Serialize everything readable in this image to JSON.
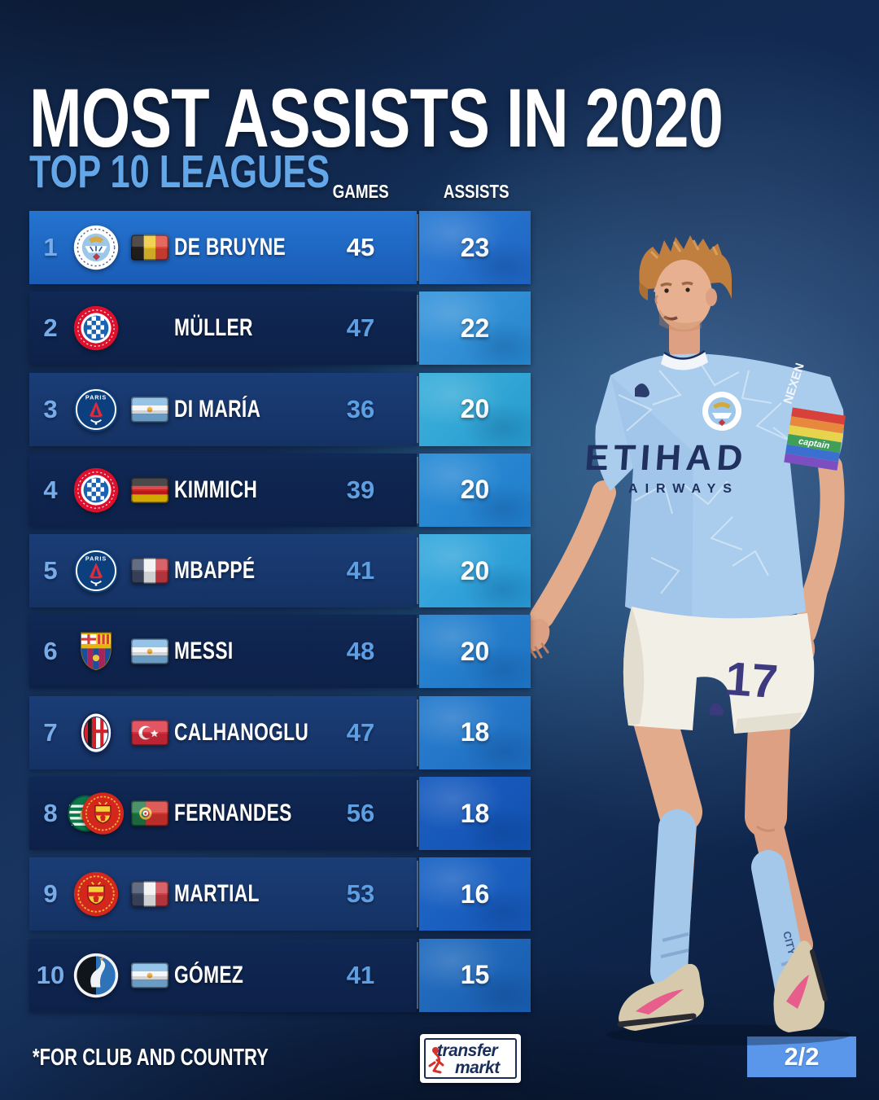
{
  "header": {
    "title": "MOST ASSISTS IN 2020",
    "subtitle": "TOP 10 LEAGUES"
  },
  "columns": {
    "games": "GAMES",
    "assists": "ASSISTS"
  },
  "rows": [
    {
      "rank": "1",
      "player": "DE BRUYNE",
      "clubs": [
        "man-city"
      ],
      "flag": "belgium",
      "games": "45",
      "assists": "23",
      "tone": "bright",
      "highlight": true,
      "assist_bg": [
        "#2e7fd6",
        "#1d63c2"
      ]
    },
    {
      "rank": "2",
      "player": "MÜLLER",
      "clubs": [
        "bayern"
      ],
      "flag": null,
      "games": "47",
      "assists": "22",
      "tone": "dark",
      "highlight": false,
      "assist_bg": [
        "#3f9ade",
        "#2484cc"
      ]
    },
    {
      "rank": "3",
      "player": "DI MARÍA",
      "clubs": [
        "psg"
      ],
      "flag": "argentina",
      "games": "36",
      "assists": "20",
      "tone": "mid",
      "highlight": false,
      "assist_bg": [
        "#3fb2dc",
        "#259ace"
      ]
    },
    {
      "rank": "4",
      "player": "KIMMICH",
      "clubs": [
        "bayern"
      ],
      "flag": "germany",
      "games": "39",
      "assists": "20",
      "tone": "dark",
      "highlight": false,
      "assist_bg": [
        "#2f90d8",
        "#1f7cca"
      ]
    },
    {
      "rank": "5",
      "player": "MBAPPÉ",
      "clubs": [
        "psg"
      ],
      "flag": "france",
      "games": "41",
      "assists": "20",
      "tone": "mid",
      "highlight": false,
      "assist_bg": [
        "#3dade0",
        "#2596d2"
      ]
    },
    {
      "rank": "6",
      "player": "MESSI",
      "clubs": [
        "barcelona"
      ],
      "flag": "argentina",
      "games": "48",
      "assists": "20",
      "tone": "dark",
      "highlight": false,
      "assist_bg": [
        "#2b87d2",
        "#1d73c4"
      ]
    },
    {
      "rank": "7",
      "player": "CALHANOGLU",
      "clubs": [
        "milan"
      ],
      "flag": "turkey",
      "games": "47",
      "assists": "18",
      "tone": "mid",
      "highlight": false,
      "assist_bg": [
        "#2a7fd0",
        "#1c6cc0"
      ]
    },
    {
      "rank": "8",
      "player": "FERNANDES",
      "clubs": [
        "sporting",
        "man-united"
      ],
      "flag": "portugal",
      "games": "56",
      "assists": "18",
      "tone": "dark",
      "highlight": false,
      "assist_bg": [
        "#1c60c2",
        "#1150b0"
      ]
    },
    {
      "rank": "9",
      "player": "MARTIAL",
      "clubs": [
        "man-united"
      ],
      "flag": "france",
      "games": "53",
      "assists": "16",
      "tone": "mid",
      "highlight": false,
      "assist_bg": [
        "#2068c8",
        "#1456b6"
      ]
    },
    {
      "rank": "10",
      "player": "GÓMEZ",
      "clubs": [
        "atalanta"
      ],
      "flag": "argentina",
      "games": "41",
      "assists": "15",
      "tone": "dark",
      "highlight": false,
      "assist_bg": [
        "#2670c2",
        "#175cae"
      ]
    }
  ],
  "player_image": {
    "sponsor_line1": "ETIHAD",
    "sponsor_line2": "AIRWAYS",
    "sleeve_text": "NEXEN",
    "armband_text": "captain",
    "shorts_number": "17",
    "sock_text": "CITY"
  },
  "footer": {
    "note": "*FOR CLUB AND COUNTRY",
    "brand_line1": "transfer",
    "brand_line2": "markt",
    "page_label": "2/2"
  },
  "colors": {
    "subtitle": "#64a7e8",
    "rank": "#77ace8",
    "games_value": "#5d9fe2",
    "page_badge": "#5a97ea",
    "row_bright": "#2070cc",
    "row_mid": "#173a72",
    "row_dark": "#0f2450"
  }
}
